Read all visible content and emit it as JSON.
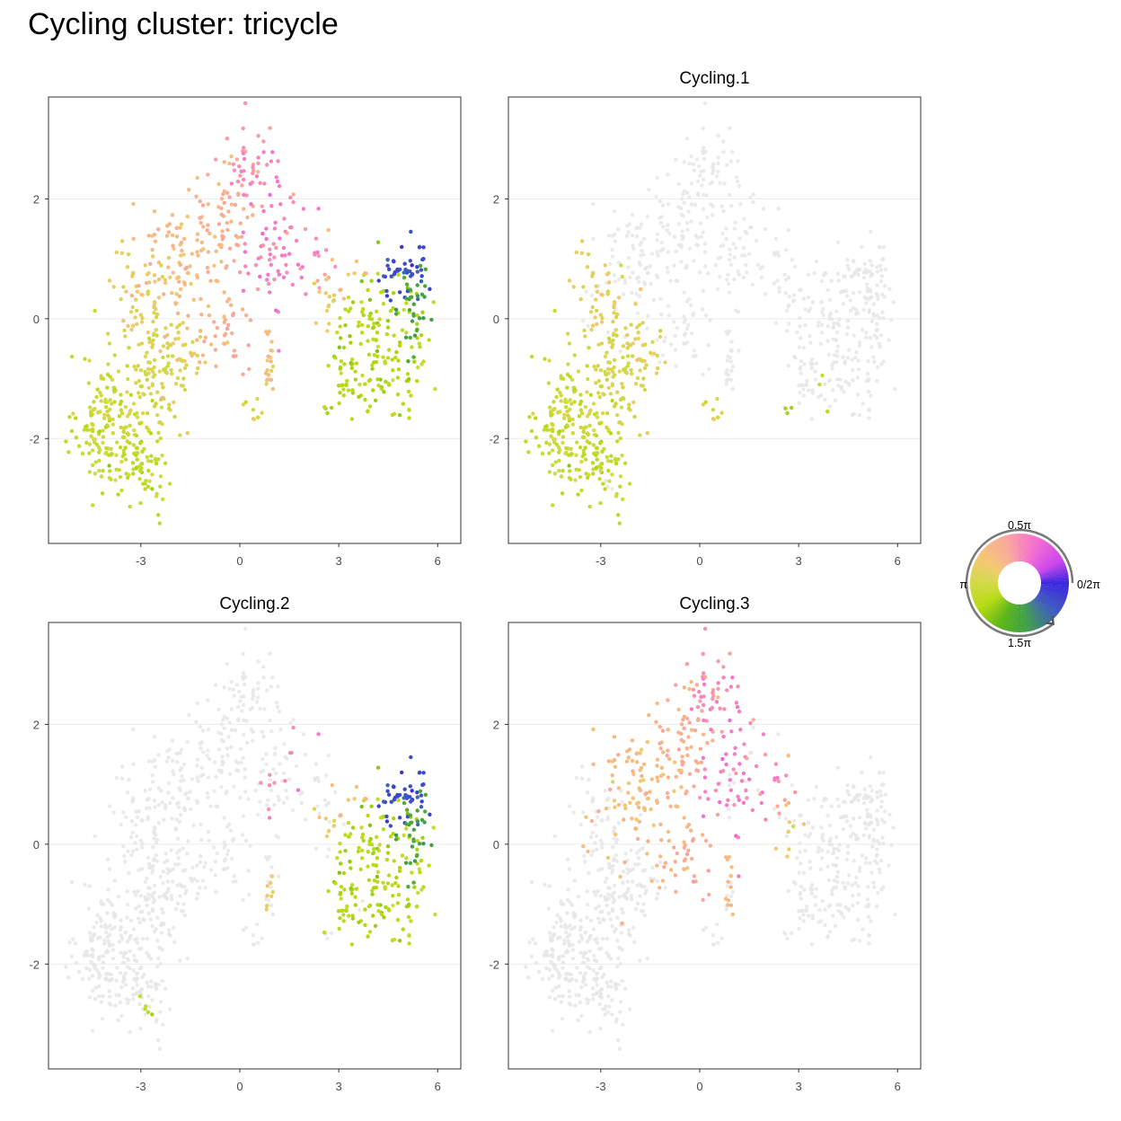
{
  "title": "Cycling cluster: tricycle",
  "chart_data": {
    "type": "scatter",
    "x_ticks": [
      "-3",
      "0",
      "3",
      "6"
    ],
    "y_ticks": [
      "2",
      "0",
      "-2"
    ],
    "xlim": [
      -5.8,
      6.7
    ],
    "ylim": [
      -3.75,
      3.7
    ],
    "grid": "horizontal major gridlines only",
    "background_point_color": "#e6e6e6",
    "panels": [
      {
        "title": "",
        "highlight": "all"
      },
      {
        "title": "Cycling.1",
        "highlight": "Cycling.1"
      },
      {
        "title": "Cycling.2",
        "highlight": "Cycling.2"
      },
      {
        "title": "Cycling.3",
        "highlight": "Cycling.3"
      }
    ],
    "clusters": [
      {
        "name": "Cycling.1",
        "regions": [
          {
            "x": -4.0,
            "y": -1.8,
            "sx": 0.45,
            "sy": 0.6,
            "n": 150,
            "phase": 3.3
          },
          {
            "x": -3.0,
            "y": -2.3,
            "sx": 0.4,
            "sy": 0.45,
            "n": 70,
            "phase": 3.5
          },
          {
            "x": -2.6,
            "y": -1.0,
            "sx": 0.5,
            "sy": 0.55,
            "n": 90,
            "phase": 3.1
          },
          {
            "x": -3.0,
            "y": 0.3,
            "sx": 0.4,
            "sy": 0.45,
            "n": 45,
            "phase": 2.85
          },
          {
            "x": -1.8,
            "y": -0.6,
            "sx": 0.45,
            "sy": 0.45,
            "n": 45,
            "phase": 2.95
          },
          {
            "x": 0.5,
            "y": -1.55,
            "sx": 0.25,
            "sy": 0.12,
            "n": 8,
            "phase": 3.0
          },
          {
            "x": 3.75,
            "y": -1.2,
            "sx": 0.15,
            "sy": 0.2,
            "n": 3,
            "phase": 3.6
          },
          {
            "x": 2.7,
            "y": -1.52,
            "sx": 0.05,
            "sy": 0.05,
            "n": 3,
            "phase": 3.55
          }
        ]
      },
      {
        "name": "Cycling.2",
        "regions": [
          {
            "x": 4.3,
            "y": -0.4,
            "sx": 0.7,
            "sy": 0.65,
            "n": 160,
            "phase": 3.65
          },
          {
            "x": 5.0,
            "y": 0.8,
            "sx": 0.4,
            "sy": 0.25,
            "n": 45,
            "phase": 5.8
          },
          {
            "x": 5.2,
            "y": 0.2,
            "sx": 0.25,
            "sy": 0.45,
            "n": 30,
            "phase": 4.7
          },
          {
            "x": 3.0,
            "y": 0.4,
            "sx": 0.4,
            "sy": 0.2,
            "n": 15,
            "phase": 2.6
          },
          {
            "x": 3.2,
            "y": -1.0,
            "sx": 0.2,
            "sy": 0.3,
            "n": 15,
            "phase": 3.6
          },
          {
            "x": 1.1,
            "y": 1.3,
            "sx": 0.5,
            "sy": 0.6,
            "n": 12,
            "phase": 1.45
          },
          {
            "x": 0.9,
            "y": -0.9,
            "sx": 0.1,
            "sy": 0.3,
            "n": 8,
            "phase": 2.7
          },
          {
            "x": -2.9,
            "y": -2.85,
            "sx": 0.2,
            "sy": 0.15,
            "n": 5,
            "phase": 3.5
          }
        ]
      },
      {
        "name": "Cycling.3",
        "regions": [
          {
            "x": -1.9,
            "y": 0.9,
            "sx": 0.6,
            "sy": 0.6,
            "n": 100,
            "phase": 2.4
          },
          {
            "x": -0.5,
            "y": 1.8,
            "sx": 0.45,
            "sy": 0.6,
            "n": 60,
            "phase": 2.1
          },
          {
            "x": 0.3,
            "y": 2.5,
            "sx": 0.4,
            "sy": 0.35,
            "n": 40,
            "phase": 1.6
          },
          {
            "x": 0.9,
            "y": 1.3,
            "sx": 0.5,
            "sy": 0.6,
            "n": 50,
            "phase": 1.35
          },
          {
            "x": -0.4,
            "y": -0.2,
            "sx": 0.5,
            "sy": 0.4,
            "n": 40,
            "phase": 2.2
          },
          {
            "x": 2.2,
            "y": 0.8,
            "sx": 0.4,
            "sy": 0.35,
            "n": 20,
            "phase": 1.75
          },
          {
            "x": 2.7,
            "y": 0.0,
            "sx": 0.2,
            "sy": 0.35,
            "n": 8,
            "phase": 2.6
          },
          {
            "x": 0.9,
            "y": -1.0,
            "sx": 0.1,
            "sy": 0.45,
            "n": 12,
            "phase": 2.2
          }
        ]
      }
    ],
    "color_wheel": {
      "labels": {
        "top": "0.5π",
        "right": "0/2π",
        "bottom": "1.5π",
        "left": "π"
      },
      "stops": [
        {
          "phase": 0.0,
          "color": "#3a26e0"
        },
        {
          "phase": 0.5,
          "color": "#cc44ee"
        },
        {
          "phase": 1.2,
          "color": "#f56fcf"
        },
        {
          "phase": 1.9,
          "color": "#f9a89b"
        },
        {
          "phase": 2.6,
          "color": "#f4c870"
        },
        {
          "phase": 3.14,
          "color": "#d2da48"
        },
        {
          "phase": 3.7,
          "color": "#b6da10"
        },
        {
          "phase": 4.3,
          "color": "#5bb516"
        },
        {
          "phase": 4.9,
          "color": "#3f9e4c"
        },
        {
          "phase": 5.6,
          "color": "#3d5bc0"
        },
        {
          "phase": 6.2832,
          "color": "#3a26e0"
        }
      ]
    }
  }
}
